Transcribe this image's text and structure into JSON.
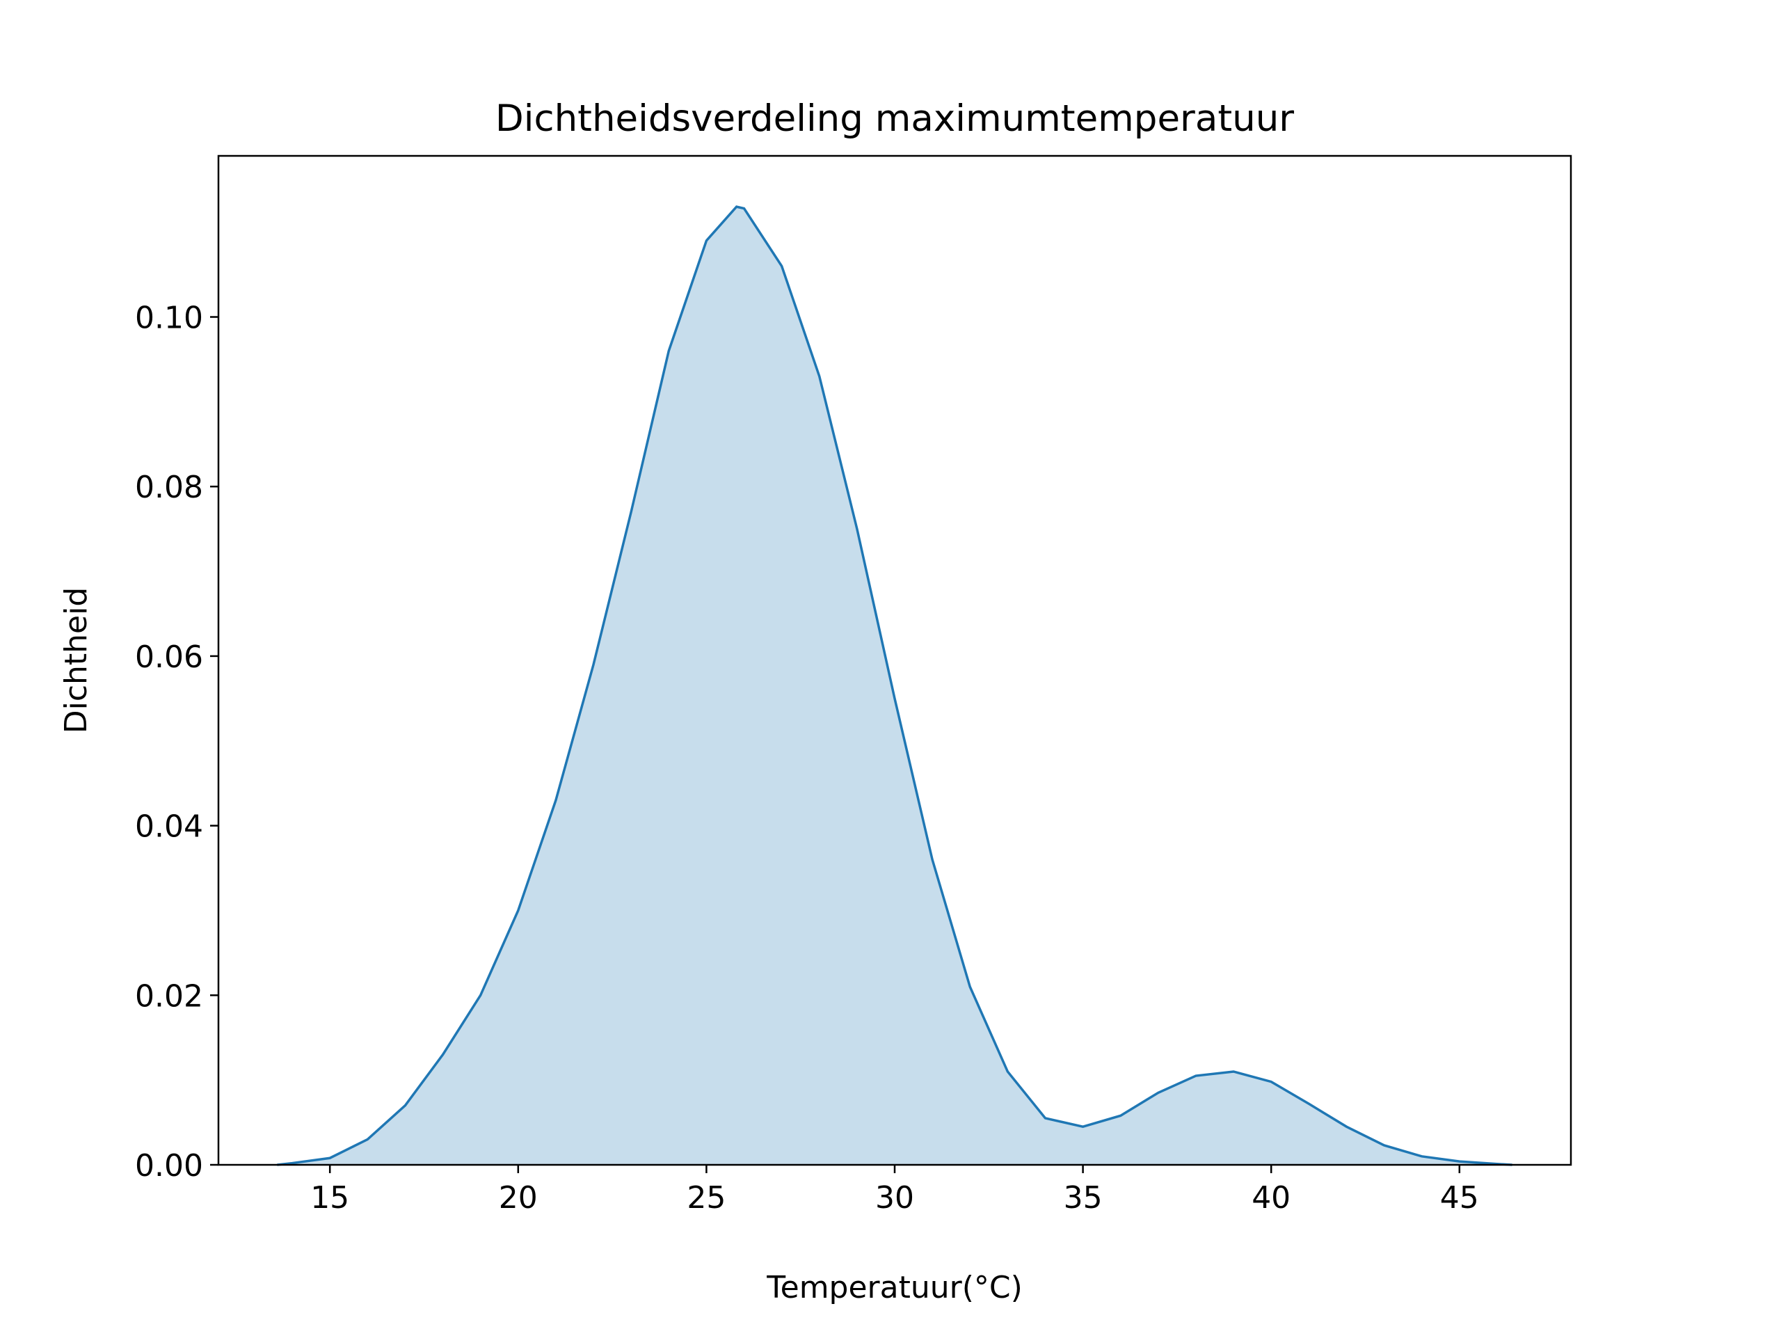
{
  "chart_data": {
    "type": "area",
    "title": "Dichtheidsverdeling maximumtemperatuur",
    "x_label": "Temperatuur(°C)",
    "y_label": "Dichtheid",
    "color": "#1f77b4",
    "x": [
      13.6,
      14,
      15,
      16,
      17,
      18,
      19,
      20,
      21,
      22,
      23,
      24,
      25,
      25.8,
      26,
      27,
      28,
      29,
      30,
      31,
      32,
      33,
      34,
      35,
      36,
      37,
      38,
      39,
      40,
      41,
      42,
      43,
      44,
      45,
      46,
      46.4
    ],
    "values": [
      0,
      0.0002,
      0.0008,
      0.003,
      0.007,
      0.013,
      0.02,
      0.03,
      0.043,
      0.059,
      0.077,
      0.096,
      0.109,
      0.113,
      0.1128,
      0.106,
      0.093,
      0.075,
      0.055,
      0.036,
      0.021,
      0.011,
      0.0055,
      0.0045,
      0.0058,
      0.0085,
      0.0105,
      0.011,
      0.0098,
      0.0072,
      0.0045,
      0.0023,
      0.001,
      0.0004,
      0.0001,
      0
    ],
    "xlim": [
      12.04,
      47.96
    ],
    "ylim": [
      0,
      0.119
    ],
    "xticks": [
      15,
      20,
      25,
      30,
      35,
      40,
      45
    ],
    "yticks": [
      {
        "value": 0,
        "label": "0.00"
      },
      {
        "value": 0.02,
        "label": "0.02"
      },
      {
        "value": 0.04,
        "label": "0.04"
      },
      {
        "value": 0.06,
        "label": "0.06"
      },
      {
        "value": 0.08,
        "label": "0.08"
      },
      {
        "value": 0.1,
        "label": "0.10"
      }
    ]
  }
}
